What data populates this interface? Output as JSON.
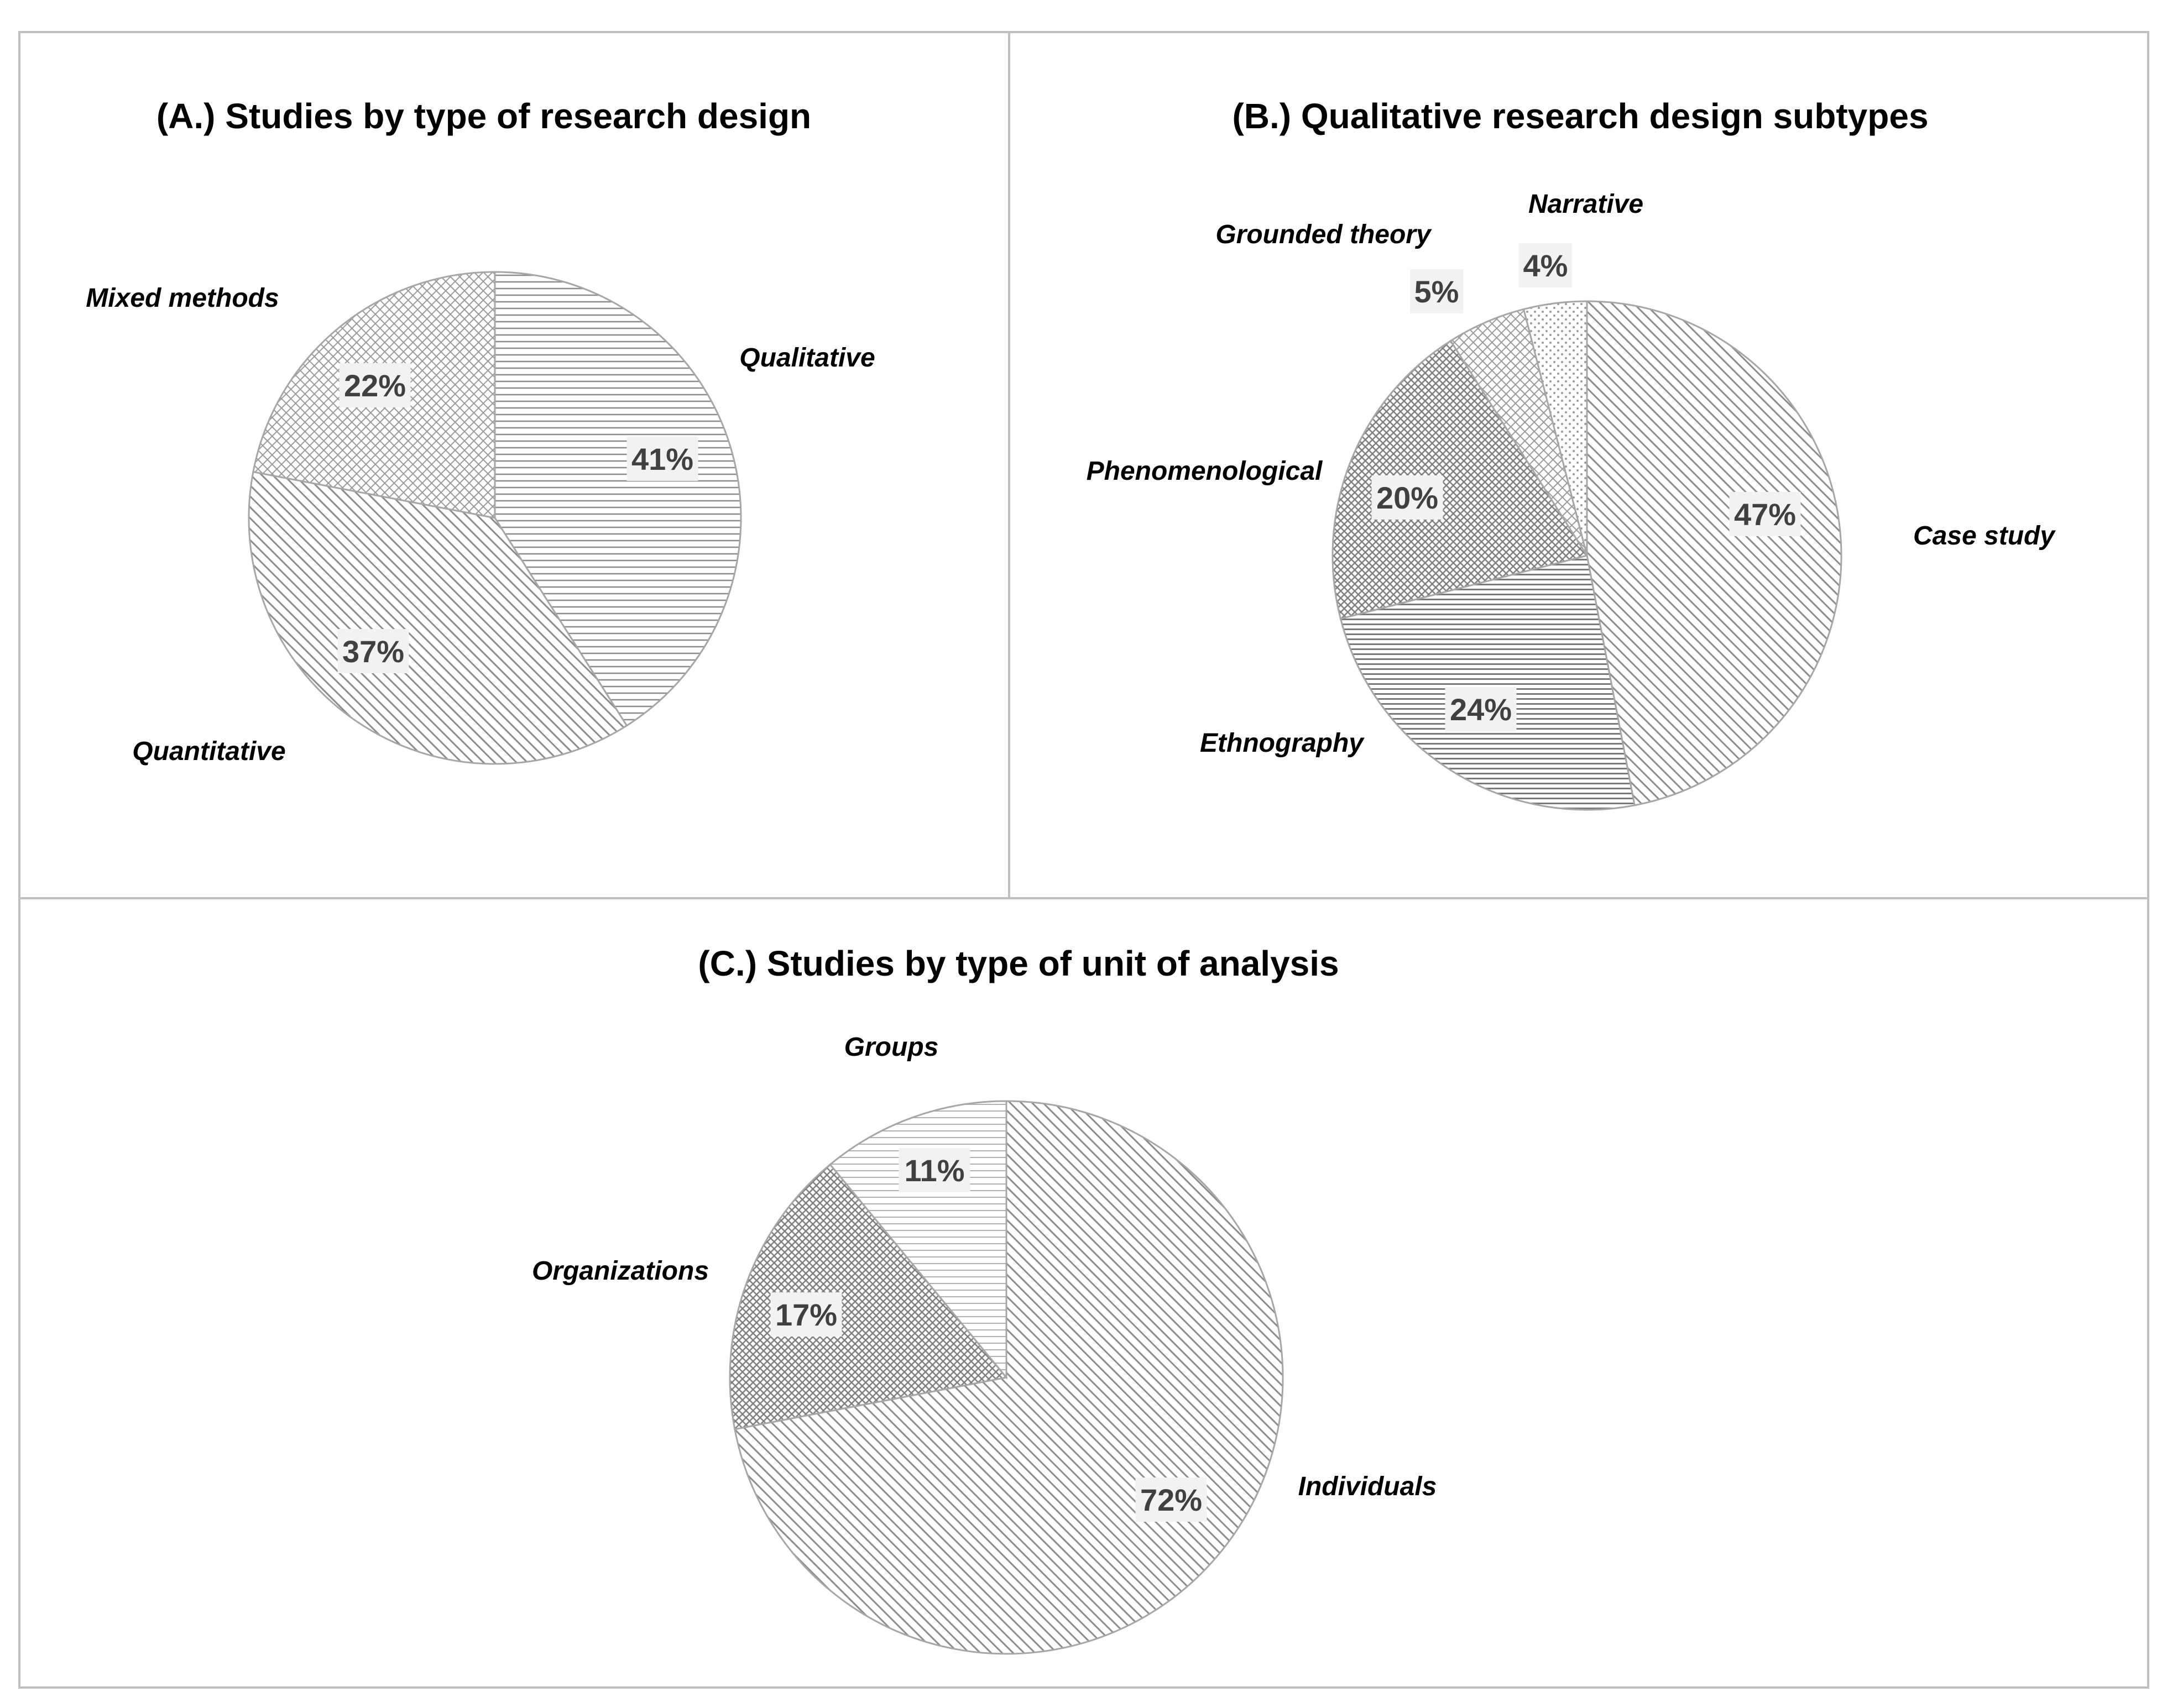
{
  "chart_data": [
    {
      "panel": "A",
      "type": "pie",
      "title": "(A.) Studies by type of research design",
      "slices": [
        {
          "label": "Qualitative",
          "value": 41,
          "value_label": "41%",
          "pattern": "hlines"
        },
        {
          "label": "Quantitative",
          "value": 37,
          "value_label": "37%",
          "pattern": "diagonal"
        },
        {
          "label": "Mixed methods",
          "value": 22,
          "value_label": "22%",
          "pattern": "crosshatch"
        }
      ]
    },
    {
      "panel": "B",
      "type": "pie",
      "title": "(B.) Qualitative research design subtypes",
      "slices": [
        {
          "label": "Case study",
          "value": 47,
          "value_label": "47%",
          "pattern": "diagonal"
        },
        {
          "label": "Ethnography",
          "value": 24,
          "value_label": "24%",
          "pattern": "hlines-dense"
        },
        {
          "label": "Phenomenological",
          "value": 20,
          "value_label": "20%",
          "pattern": "crosshatch-dense"
        },
        {
          "label": "Grounded theory",
          "value": 5,
          "value_label": "5%",
          "pattern": "crosshatch"
        },
        {
          "label": "Narrative",
          "value": 4,
          "value_label": "4%",
          "pattern": "dots"
        }
      ]
    },
    {
      "panel": "C",
      "type": "pie",
      "title": "(C.) Studies by type of unit of analysis",
      "slices": [
        {
          "label": "Individuals",
          "value": 72,
          "value_label": "72%",
          "pattern": "diagonal"
        },
        {
          "label": "Organizations",
          "value": 17,
          "value_label": "17%",
          "pattern": "crosshatch-dense"
        },
        {
          "label": "Groups",
          "value": 11,
          "value_label": "11%",
          "pattern": "hlines-light"
        }
      ]
    }
  ],
  "colors": {
    "border": "#bfbfbf",
    "slice_stroke": "#a6a6a6",
    "pattern_ink": "#8c8c8c",
    "value_label_bg": "#f2f2f2",
    "value_label_text": "#404040",
    "title_text": "#000000"
  }
}
